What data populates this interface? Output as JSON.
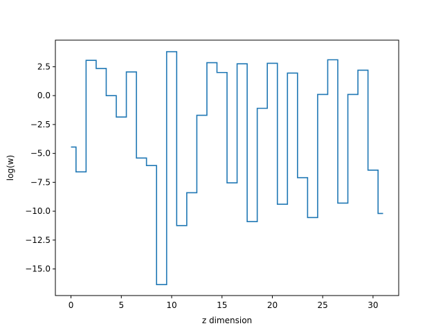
{
  "chart_data": {
    "type": "line",
    "drawstyle": "steps-mid",
    "title": "",
    "xlabel": "z dimension",
    "ylabel": "log(w)",
    "xlim": [
      -1.55,
      32.55
    ],
    "ylim": [
      -17.3,
      4.8
    ],
    "xticks": [
      0,
      5,
      10,
      15,
      20,
      25,
      30
    ],
    "xtick_labels": [
      "0",
      "5",
      "10",
      "15",
      "20",
      "25",
      "30"
    ],
    "yticks": [
      2.5,
      0.0,
      -2.5,
      -5.0,
      -7.5,
      -10.0,
      -12.5,
      -15.0
    ],
    "ytick_labels": [
      "2.5",
      "0.0",
      "−2.5",
      "−5.0",
      "−7.5",
      "−10.0",
      "−12.5",
      "−15.0"
    ],
    "grid": false,
    "legend": "none",
    "color": "#1f77b4",
    "x": [
      0,
      1,
      2,
      3,
      4,
      5,
      6,
      7,
      8,
      9,
      10,
      11,
      12,
      13,
      14,
      15,
      16,
      17,
      18,
      19,
      20,
      21,
      22,
      23,
      24,
      25,
      26,
      27,
      28,
      29,
      30,
      31
    ],
    "y": [
      -4.45,
      -6.6,
      3.05,
      2.35,
      0.0,
      -1.85,
      2.05,
      -5.4,
      -6.05,
      -16.35,
      3.8,
      -11.25,
      -8.4,
      -1.7,
      2.85,
      2.0,
      -7.55,
      2.75,
      -10.9,
      -1.1,
      2.8,
      -9.4,
      1.95,
      -7.1,
      -10.55,
      0.1,
      3.1,
      -9.3,
      0.1,
      2.2,
      -6.45,
      -10.2
    ]
  }
}
